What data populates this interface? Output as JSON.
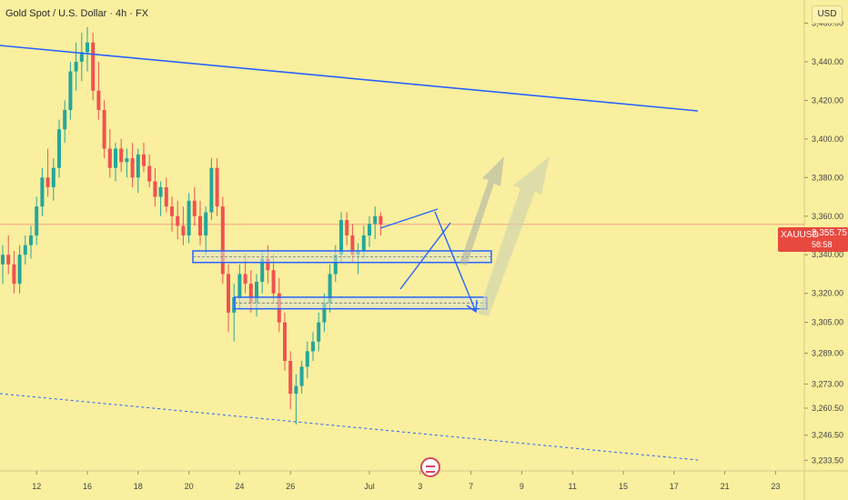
{
  "title": "Gold Spot / U.S. Dollar · 4h · FX",
  "currency": "USD",
  "symbol": "XAUUSD",
  "current_price": "3,355.75",
  "countdown": "58:58",
  "colors": {
    "background": "#f9ef9e",
    "bull": "#26a69a",
    "bear": "#ef5350",
    "drawing": "#2962ff",
    "price_line": "#f08080"
  },
  "chart_data": {
    "type": "candlestick",
    "title": "Gold Spot / U.S. Dollar · 4h · FX",
    "ylabel": "USD",
    "ylim": [
      3228,
      3472
    ],
    "grid": false,
    "y_ticks": [
      {
        "label": "3,460.00",
        "value": 3460
      },
      {
        "label": "3,440.00",
        "value": 3440
      },
      {
        "label": "3,420.00",
        "value": 3420
      },
      {
        "label": "3,400.00",
        "value": 3400
      },
      {
        "label": "3,380.00",
        "value": 3380
      },
      {
        "label": "3,360.00",
        "value": 3360
      },
      {
        "label": "3,340.00",
        "value": 3340
      },
      {
        "label": "3,320.00",
        "value": 3320
      },
      {
        "label": "3,305.00",
        "value": 3305
      },
      {
        "label": "3,289.00",
        "value": 3289
      },
      {
        "label": "3,273.00",
        "value": 3273
      },
      {
        "label": "3,260.50",
        "value": 3260.5
      },
      {
        "label": "3,246.50",
        "value": 3246.5
      },
      {
        "label": "3,233.50",
        "value": 3233.5
      }
    ],
    "x_ticks": [
      {
        "label": "12",
        "bar": 6
      },
      {
        "label": "16",
        "bar": 15
      },
      {
        "label": "18",
        "bar": 24
      },
      {
        "label": "20",
        "bar": 33
      },
      {
        "label": "24",
        "bar": 42
      },
      {
        "label": "26",
        "bar": 51
      },
      {
        "label": "Jul",
        "bar": 65
      },
      {
        "label": "3",
        "bar": 74
      },
      {
        "label": "7",
        "bar": 83
      },
      {
        "label": "9",
        "bar": 92
      },
      {
        "label": "11",
        "bar": 101
      },
      {
        "label": "15",
        "bar": 110
      },
      {
        "label": "17",
        "bar": 119
      },
      {
        "label": "21",
        "bar": 128
      },
      {
        "label": "23",
        "bar": 137
      }
    ],
    "candles": [
      [
        3335,
        3345,
        3325,
        3340
      ],
      [
        3340,
        3350,
        3330,
        3335
      ],
      [
        3335,
        3342,
        3320,
        3325
      ],
      [
        3325,
        3345,
        3320,
        3340
      ],
      [
        3340,
        3350,
        3335,
        3345
      ],
      [
        3345,
        3355,
        3338,
        3350
      ],
      [
        3350,
        3370,
        3345,
        3365
      ],
      [
        3365,
        3385,
        3360,
        3380
      ],
      [
        3380,
        3395,
        3370,
        3375
      ],
      [
        3375,
        3390,
        3368,
        3385
      ],
      [
        3385,
        3410,
        3380,
        3405
      ],
      [
        3405,
        3420,
        3398,
        3415
      ],
      [
        3415,
        3440,
        3410,
        3435
      ],
      [
        3435,
        3450,
        3425,
        3440
      ],
      [
        3440,
        3455,
        3430,
        3445
      ],
      [
        3445,
        3458,
        3435,
        3450
      ],
      [
        3450,
        3455,
        3420,
        3425
      ],
      [
        3425,
        3440,
        3410,
        3415
      ],
      [
        3415,
        3420,
        3390,
        3395
      ],
      [
        3395,
        3405,
        3380,
        3385
      ],
      [
        3385,
        3398,
        3378,
        3395
      ],
      [
        3395,
        3400,
        3383,
        3388
      ],
      [
        3388,
        3395,
        3380,
        3390
      ],
      [
        3390,
        3398,
        3375,
        3380
      ],
      [
        3380,
        3395,
        3372,
        3392
      ],
      [
        3392,
        3398,
        3383,
        3386
      ],
      [
        3386,
        3392,
        3375,
        3378
      ],
      [
        3378,
        3385,
        3365,
        3370
      ],
      [
        3370,
        3378,
        3360,
        3375
      ],
      [
        3375,
        3380,
        3362,
        3365
      ],
      [
        3365,
        3370,
        3352,
        3360
      ],
      [
        3360,
        3368,
        3348,
        3355
      ],
      [
        3355,
        3365,
        3345,
        3350
      ],
      [
        3350,
        3372,
        3346,
        3368
      ],
      [
        3368,
        3375,
        3355,
        3360
      ],
      [
        3360,
        3368,
        3345,
        3350
      ],
      [
        3350,
        3365,
        3340,
        3362
      ],
      [
        3362,
        3390,
        3358,
        3385
      ],
      [
        3385,
        3390,
        3360,
        3365
      ],
      [
        3365,
        3370,
        3325,
        3330
      ],
      [
        3330,
        3335,
        3300,
        3310
      ],
      [
        3310,
        3325,
        3295,
        3318
      ],
      [
        3318,
        3335,
        3312,
        3330
      ],
      [
        3330,
        3340,
        3320,
        3325
      ],
      [
        3325,
        3332,
        3310,
        3315
      ],
      [
        3315,
        3330,
        3308,
        3326
      ],
      [
        3326,
        3342,
        3320,
        3338
      ],
      [
        3338,
        3345,
        3325,
        3332
      ],
      [
        3332,
        3340,
        3315,
        3320
      ],
      [
        3320,
        3328,
        3300,
        3305
      ],
      [
        3305,
        3310,
        3280,
        3285
      ],
      [
        3285,
        3290,
        3260,
        3268
      ],
      [
        3268,
        3278,
        3252,
        3272
      ],
      [
        3272,
        3285,
        3268,
        3282
      ],
      [
        3282,
        3295,
        3276,
        3290
      ],
      [
        3290,
        3300,
        3285,
        3295
      ],
      [
        3295,
        3310,
        3290,
        3305
      ],
      [
        3305,
        3320,
        3300,
        3315
      ],
      [
        3315,
        3335,
        3310,
        3330
      ],
      [
        3330,
        3345,
        3326,
        3340
      ],
      [
        3340,
        3362,
        3336,
        3358
      ],
      [
        3358,
        3362,
        3345,
        3350
      ],
      [
        3350,
        3356,
        3336,
        3340
      ],
      [
        3340,
        3346,
        3330,
        3342
      ],
      [
        3342,
        3355,
        3338,
        3350
      ],
      [
        3350,
        3360,
        3344,
        3356
      ],
      [
        3356,
        3365,
        3348,
        3360
      ],
      [
        3360,
        3362,
        3350,
        3355.75
      ]
    ],
    "annotations": [
      {
        "type": "trend_line",
        "label": "upper descending trend line"
      },
      {
        "type": "dashed_trend_line",
        "label": "lower descending trend line"
      },
      {
        "type": "zone",
        "price_low": 3336,
        "price_high": 3342
      },
      {
        "type": "zone",
        "price_low": 3312,
        "price_high": 3318
      },
      {
        "type": "projection_arrow",
        "label": "expected drop to lower zone"
      },
      {
        "type": "projection_arrow",
        "label": "bullish continuation"
      }
    ]
  }
}
